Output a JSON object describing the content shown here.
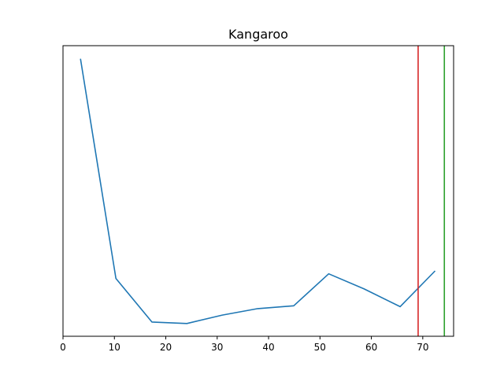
{
  "chart_data": {
    "type": "line",
    "title": "Kangaroo",
    "xlabel": "",
    "ylabel": "",
    "xlim": [
      0,
      76
    ],
    "ylim": [
      0,
      1
    ],
    "grid": false,
    "legend": "none",
    "x_ticks": [
      0,
      10,
      20,
      30,
      40,
      50,
      60,
      70
    ],
    "y_ticks_visible": false,
    "series": [
      {
        "color": "#1f77b4",
        "x": [
          3.4,
          10.3,
          17.3,
          24.1,
          31.0,
          37.9,
          44.9,
          51.7,
          58.6,
          65.6,
          72.4
        ],
        "y": [
          0.955,
          0.199,
          0.049,
          0.044,
          0.073,
          0.095,
          0.105,
          0.215,
          0.163,
          0.102,
          0.225
        ]
      }
    ],
    "vlines": [
      {
        "x": 69.1,
        "color": "#d62728"
      },
      {
        "x": 74.2,
        "color": "#2ca02c"
      }
    ]
  }
}
